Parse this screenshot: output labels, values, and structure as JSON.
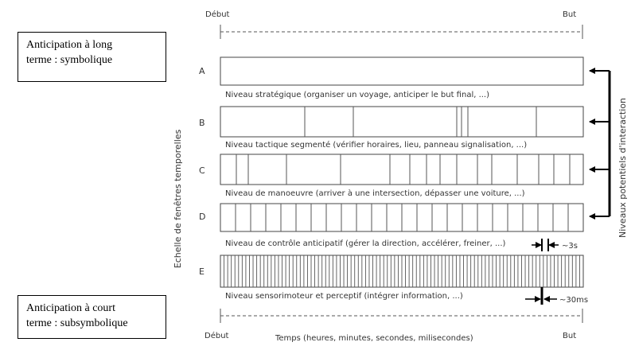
{
  "top_axis": {
    "start_label": "Début",
    "end_label": "But"
  },
  "bottom_axis": {
    "start_label": "Début",
    "end_label": "But",
    "caption": "Temps (heures, minutes, secondes, milisecondes)"
  },
  "left_boxes": {
    "long_term": {
      "line1": "Anticipation à long",
      "line2": "terme : symbolique"
    },
    "short_term": {
      "line1": "Anticipation à court",
      "line2": "terme : subsymbolique"
    }
  },
  "vertical_axis_label": "Echelle de fenêtres temporelles",
  "interaction_label": "Niveaux potentiels d'interaction",
  "levels": [
    {
      "letter": "A",
      "caption": "Niveau stratégique (organiser un voyage, anticiper le but final, ...)"
    },
    {
      "letter": "B",
      "caption": "Niveau tactique segmenté (vérifier horaires, lieu, panneau signalisation, ...)"
    },
    {
      "letter": "C",
      "caption": "Niveau de manoeuvre (arriver à une intersection, dépasser une voiture, ...)"
    },
    {
      "letter": "D",
      "caption": "Niveau de contrôle anticipatif (gérer la direction, accélérer, freiner, ...)"
    },
    {
      "letter": "E",
      "caption": "Niveau sensorimoteur et perceptif (intégrer information, ...)"
    }
  ],
  "timescales": {
    "d": "~3s",
    "e": "~30ms"
  }
}
